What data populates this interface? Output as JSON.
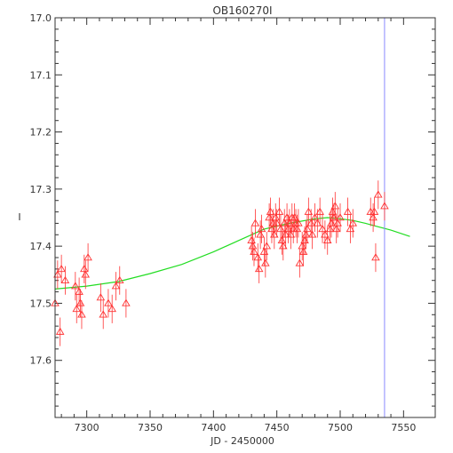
{
  "chart_data": {
    "type": "scatter",
    "title": "OB160270I",
    "xlabel": "JD - 2450000",
    "ylabel": "I",
    "xlim": [
      7275,
      7575
    ],
    "ylim": [
      17.7,
      17.0
    ],
    "y_inverted": true,
    "x_ticks": [
      7300,
      7350,
      7400,
      7450,
      7500,
      7550
    ],
    "y_ticks": [
      17.0,
      17.1,
      17.2,
      17.3,
      17.4,
      17.5,
      17.6
    ],
    "grid": false,
    "marker": "open-triangle",
    "colors": {
      "points": "#ff3333",
      "model": "#22dd22",
      "vline": "#8888ff",
      "axes": "#333333"
    },
    "series": [
      {
        "role": "observations",
        "x": [
          7275,
          7277,
          7279,
          7280,
          7283,
          7291,
          7292,
          7294,
          7295,
          7296,
          7298,
          7299,
          7301,
          7311,
          7313,
          7317,
          7320,
          7323,
          7326,
          7331,
          7430,
          7431,
          7432,
          7433,
          7435,
          7436,
          7437,
          7438,
          7440,
          7441,
          7442,
          7444,
          7445,
          7446,
          7447,
          7448,
          7449,
          7450,
          7452,
          7453,
          7454,
          7455,
          7456,
          7457,
          7458,
          7459,
          7460,
          7461,
          7462,
          7463,
          7464,
          7465,
          7466,
          7467,
          7468,
          7470,
          7471,
          7472,
          7473,
          7474,
          7475,
          7477,
          7478,
          7480,
          7482,
          7484,
          7486,
          7488,
          7490,
          7492,
          7493,
          7494,
          7495,
          7496,
          7497,
          7498,
          7500,
          7506,
          7508,
          7510,
          7524,
          7526,
          7527,
          7528,
          7530,
          7535
        ],
        "y": [
          17.5,
          17.45,
          17.55,
          17.44,
          17.46,
          17.47,
          17.51,
          17.48,
          17.5,
          17.52,
          17.44,
          17.45,
          17.42,
          17.49,
          17.52,
          17.5,
          17.51,
          17.47,
          17.46,
          17.5,
          17.39,
          17.4,
          17.41,
          17.36,
          17.42,
          17.44,
          17.38,
          17.37,
          17.41,
          17.43,
          17.4,
          17.35,
          17.34,
          17.37,
          17.36,
          17.38,
          17.35,
          17.36,
          17.34,
          17.37,
          17.39,
          17.4,
          17.36,
          17.38,
          17.35,
          17.37,
          17.36,
          17.38,
          17.35,
          17.37,
          17.35,
          17.36,
          17.37,
          17.36,
          17.43,
          17.4,
          17.41,
          17.39,
          17.38,
          17.37,
          17.34,
          17.36,
          17.38,
          17.35,
          17.36,
          17.34,
          17.37,
          17.38,
          17.39,
          17.37,
          17.36,
          17.34,
          17.35,
          17.33,
          17.37,
          17.36,
          17.35,
          17.34,
          17.37,
          17.36,
          17.34,
          17.35,
          17.34,
          17.42,
          17.31,
          17.33
        ],
        "error": 0.025
      },
      {
        "role": "model",
        "x": [
          7275,
          7300,
          7325,
          7350,
          7375,
          7400,
          7420,
          7440,
          7460,
          7480,
          7490,
          7500,
          7510,
          7520,
          7530,
          7540,
          7555
        ],
        "y": [
          17.475,
          17.47,
          17.462,
          17.448,
          17.432,
          17.41,
          17.39,
          17.37,
          17.36,
          17.352,
          17.35,
          17.352,
          17.355,
          17.36,
          17.366,
          17.372,
          17.383
        ]
      }
    ],
    "vlines": [
      7535
    ]
  }
}
